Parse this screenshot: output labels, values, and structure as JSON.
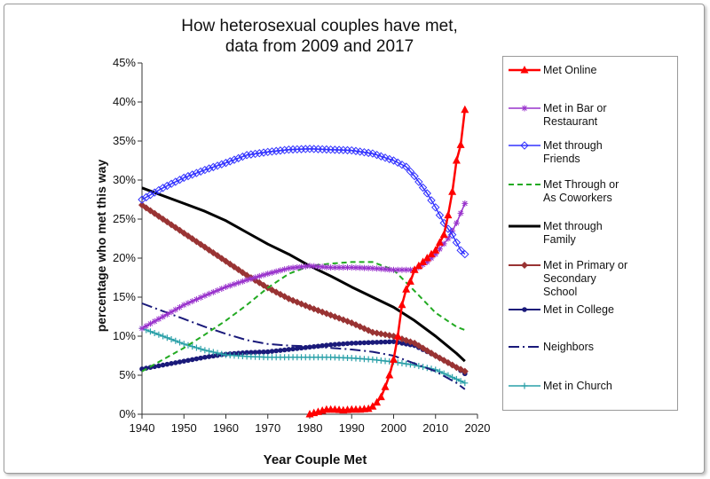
{
  "chart_data": {
    "type": "line",
    "title_lines": [
      "How heterosexual couples have met,",
      "data from 2009 and 2017"
    ],
    "xlabel": "Year Couple Met",
    "ylabel": "percentage who met this way",
    "xlim": [
      1940,
      2020
    ],
    "ylim": [
      0,
      0.45
    ],
    "x_ticks": [
      "1940",
      "1950",
      "1960",
      "1970",
      "1980",
      "1990",
      "2000",
      "2010",
      "2020"
    ],
    "y_ticks": [
      "0%",
      "5%",
      "10%",
      "15%",
      "20%",
      "25%",
      "30%",
      "35%",
      "40%",
      "45%"
    ],
    "grid": false,
    "legend_position": "right",
    "series": [
      {
        "name": "Met Online",
        "color": "#ff0000",
        "marker": "triangle",
        "dash": "solid",
        "width": 2.5,
        "x": [
          1980,
          1982,
          1984,
          1986,
          1988,
          1990,
          1992,
          1994,
          1995,
          1996,
          1997,
          1998,
          1999,
          2000,
          2001,
          2002,
          2003,
          2004,
          2005,
          2006,
          2007,
          2008,
          2009,
          2010,
          2011,
          2012,
          2013,
          2014,
          2015,
          2016,
          2017
        ],
        "y": [
          0.0,
          0.003,
          0.006,
          0.006,
          0.005,
          0.006,
          0.006,
          0.007,
          0.01,
          0.015,
          0.022,
          0.035,
          0.05,
          0.07,
          0.1,
          0.14,
          0.16,
          0.17,
          0.185,
          0.19,
          0.195,
          0.2,
          0.205,
          0.21,
          0.22,
          0.23,
          0.255,
          0.285,
          0.325,
          0.345,
          0.39
        ]
      },
      {
        "name": "Met in Bar or Restaurant",
        "color": "#9933cc",
        "marker": "star",
        "dash": "solid",
        "width": 1.5,
        "x": [
          1940,
          1945,
          1950,
          1955,
          1960,
          1965,
          1970,
          1975,
          1980,
          1985,
          1990,
          1995,
          2000,
          2005,
          2008,
          2010,
          2013,
          2015,
          2017
        ],
        "y": [
          0.11,
          0.125,
          0.14,
          0.152,
          0.163,
          0.172,
          0.18,
          0.187,
          0.19,
          0.188,
          0.188,
          0.187,
          0.185,
          0.185,
          0.195,
          0.205,
          0.225,
          0.245,
          0.27
        ]
      },
      {
        "name": "Met through Friends",
        "color": "#3333ff",
        "marker": "diamond-open",
        "dash": "solid",
        "width": 1.5,
        "x": [
          1940,
          1945,
          1950,
          1955,
          1960,
          1965,
          1970,
          1975,
          1980,
          1985,
          1990,
          1995,
          2000,
          2003,
          2005,
          2008,
          2010,
          2012,
          2014,
          2016,
          2017
        ],
        "y": [
          0.275,
          0.29,
          0.303,
          0.313,
          0.322,
          0.332,
          0.336,
          0.339,
          0.34,
          0.339,
          0.338,
          0.334,
          0.325,
          0.317,
          0.305,
          0.283,
          0.265,
          0.245,
          0.23,
          0.21,
          0.205
        ]
      },
      {
        "name": "Met Through or As Coworkers",
        "color": "#22aa22",
        "marker": "none",
        "dash": "dash",
        "width": 2,
        "x": [
          1940,
          1945,
          1950,
          1955,
          1960,
          1965,
          1970,
          1975,
          1980,
          1985,
          1990,
          1995,
          2000,
          2005,
          2010,
          2015,
          2017
        ],
        "y": [
          0.055,
          0.07,
          0.085,
          0.102,
          0.12,
          0.14,
          0.162,
          0.18,
          0.19,
          0.193,
          0.195,
          0.195,
          0.185,
          0.158,
          0.13,
          0.112,
          0.108
        ]
      },
      {
        "name": "Met through Family",
        "color": "#000000",
        "marker": "none",
        "dash": "solid",
        "width": 3,
        "x": [
          1940,
          1945,
          1950,
          1955,
          1960,
          1965,
          1970,
          1975,
          1980,
          1985,
          1990,
          1995,
          2000,
          2005,
          2010,
          2015,
          2017
        ],
        "y": [
          0.29,
          0.28,
          0.27,
          0.26,
          0.248,
          0.233,
          0.218,
          0.205,
          0.19,
          0.177,
          0.163,
          0.15,
          0.137,
          0.12,
          0.1,
          0.078,
          0.068
        ]
      },
      {
        "name": "Met in Primary or Secondary School",
        "color": "#993333",
        "marker": "diamond",
        "dash": "solid",
        "width": 2,
        "x": [
          1940,
          1945,
          1950,
          1955,
          1960,
          1965,
          1970,
          1975,
          1980,
          1985,
          1990,
          1995,
          2000,
          2005,
          2010,
          2015,
          2017
        ],
        "y": [
          0.268,
          0.25,
          0.232,
          0.214,
          0.196,
          0.178,
          0.162,
          0.148,
          0.137,
          0.127,
          0.117,
          0.105,
          0.1,
          0.091,
          0.075,
          0.06,
          0.055
        ]
      },
      {
        "name": "Met in College",
        "color": "#1a1a7a",
        "marker": "dot",
        "dash": "solid",
        "width": 2,
        "x": [
          1940,
          1945,
          1950,
          1955,
          1960,
          1965,
          1970,
          1975,
          1980,
          1985,
          1990,
          1995,
          2000,
          2005,
          2010,
          2015,
          2017
        ],
        "y": [
          0.058,
          0.063,
          0.068,
          0.073,
          0.077,
          0.079,
          0.08,
          0.083,
          0.086,
          0.089,
          0.091,
          0.092,
          0.093,
          0.088,
          0.075,
          0.06,
          0.052
        ]
      },
      {
        "name": "Neighbors",
        "color": "#1a1a7a",
        "marker": "none",
        "dash": "dashdot",
        "width": 2,
        "x": [
          1940,
          1945,
          1950,
          1955,
          1960,
          1965,
          1970,
          1975,
          1980,
          1985,
          1990,
          1995,
          2000,
          2005,
          2010,
          2015,
          2017
        ],
        "y": [
          0.142,
          0.132,
          0.122,
          0.112,
          0.103,
          0.095,
          0.09,
          0.088,
          0.087,
          0.085,
          0.083,
          0.08,
          0.075,
          0.065,
          0.055,
          0.04,
          0.032
        ]
      },
      {
        "name": "Met in Church",
        "color": "#2aa0a8",
        "marker": "plus",
        "dash": "solid",
        "width": 1.5,
        "x": [
          1940,
          1945,
          1950,
          1955,
          1960,
          1965,
          1970,
          1975,
          1980,
          1985,
          1990,
          1995,
          2000,
          2005,
          2010,
          2015,
          2017
        ],
        "y": [
          0.11,
          0.1,
          0.09,
          0.082,
          0.076,
          0.074,
          0.073,
          0.073,
          0.073,
          0.073,
          0.072,
          0.07,
          0.067,
          0.063,
          0.057,
          0.045,
          0.04
        ]
      }
    ],
    "legend_labels": [
      [
        "Met Online"
      ],
      [
        "Met in Bar or",
        "Restaurant"
      ],
      [
        "Met through",
        "Friends"
      ],
      [
        "Met Through or",
        "As Coworkers"
      ],
      [
        "Met through",
        "Family"
      ],
      [
        "Met in Primary or",
        "Secondary",
        "School"
      ],
      [
        "Met in College"
      ],
      [
        "Neighbors"
      ],
      [
        "Met in Church"
      ]
    ]
  }
}
